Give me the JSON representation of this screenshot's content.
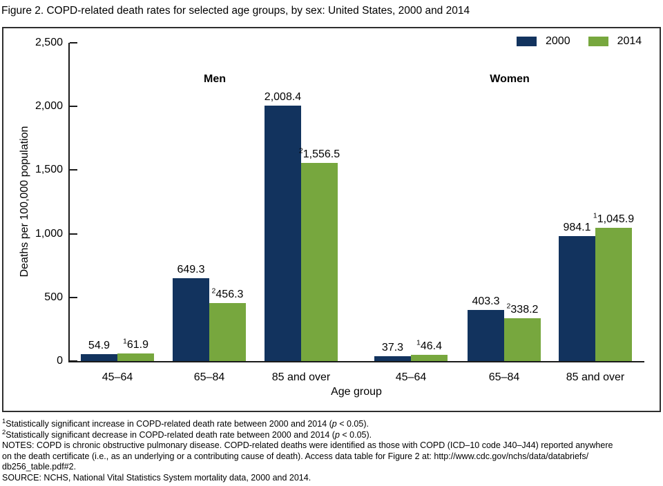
{
  "title": "Figure 2. COPD-related death rates for selected age groups, by sex: United States, 2000 and 2014",
  "chart_data": {
    "type": "bar",
    "title": "Figure 2. COPD-related death rates for selected age groups, by sex: United States, 2000 and 2014",
    "ylabel": "Deaths per 100,000 population",
    "xlabel": "Age group",
    "ylim": [
      0,
      2500
    ],
    "grid": false,
    "legend_position": "top-right",
    "yticks": [
      {
        "value": 0,
        "label": "0"
      },
      {
        "value": 500,
        "label": "500"
      },
      {
        "value": 1000,
        "label": "1,000"
      },
      {
        "value": 1500,
        "label": "1,500"
      },
      {
        "value": 2000,
        "label": "2,000"
      },
      {
        "value": 2500,
        "label": "2,500"
      }
    ],
    "legend": [
      {
        "name": "2000",
        "color": "#12335E"
      },
      {
        "name": "2014",
        "color": "#77A73E"
      }
    ],
    "panels": [
      {
        "label": "Men",
        "groups": [
          {
            "category": "45–64",
            "bars": [
              {
                "series": "2000",
                "value": 54.9,
                "label": "54.9",
                "sup": ""
              },
              {
                "series": "2014",
                "value": 61.9,
                "label": "61.9",
                "sup": "1"
              }
            ]
          },
          {
            "category": "65–84",
            "bars": [
              {
                "series": "2000",
                "value": 649.3,
                "label": "649.3",
                "sup": ""
              },
              {
                "series": "2014",
                "value": 456.3,
                "label": "456.3",
                "sup": "2"
              }
            ]
          },
          {
            "category": "85 and over",
            "bars": [
              {
                "series": "2000",
                "value": 2008.4,
                "label": "2,008.4",
                "sup": ""
              },
              {
                "series": "2014",
                "value": 1556.5,
                "label": "1,556.5",
                "sup": "2"
              }
            ]
          }
        ]
      },
      {
        "label": "Women",
        "groups": [
          {
            "category": "45–64",
            "bars": [
              {
                "series": "2000",
                "value": 37.3,
                "label": "37.3",
                "sup": ""
              },
              {
                "series": "2014",
                "value": 46.4,
                "label": "46.4",
                "sup": "1"
              }
            ]
          },
          {
            "category": "65–84",
            "bars": [
              {
                "series": "2000",
                "value": 403.3,
                "label": "403.3",
                "sup": ""
              },
              {
                "series": "2014",
                "value": 338.2,
                "label": "338.2",
                "sup": "2"
              }
            ]
          },
          {
            "category": "85 and over",
            "bars": [
              {
                "series": "2000",
                "value": 984.1,
                "label": "984.1",
                "sup": ""
              },
              {
                "series": "2014",
                "value": 1045.9,
                "label": "1,045.9",
                "sup": "1"
              }
            ]
          }
        ]
      }
    ]
  },
  "footnotes": [
    {
      "sup": "1",
      "text": "Statistically significant increase in COPD-related death rate between 2000 and 2014 (",
      "p": "p",
      "rest": " < 0.05)."
    },
    {
      "sup": "2",
      "text": "Statistically significant decrease in COPD-related death rate between 2000 and 2014 (",
      "p": "p",
      "rest": " < 0.05)."
    }
  ],
  "notes": [
    "NOTES: COPD is chronic obstructive pulmonary disease. COPD-related deaths were identified as those with COPD (ICD–10 code J40–J44) reported anywhere",
    "on the death certificate (i.e., as an underlying or a contributing cause of death). Access data table for Figure 2 at: http://www.cdc.gov/nchs/data/databriefs/",
    "db256_table.pdf#2.",
    "SOURCE: NCHS, National Vital Statistics System mortality data, 2000 and 2014."
  ]
}
